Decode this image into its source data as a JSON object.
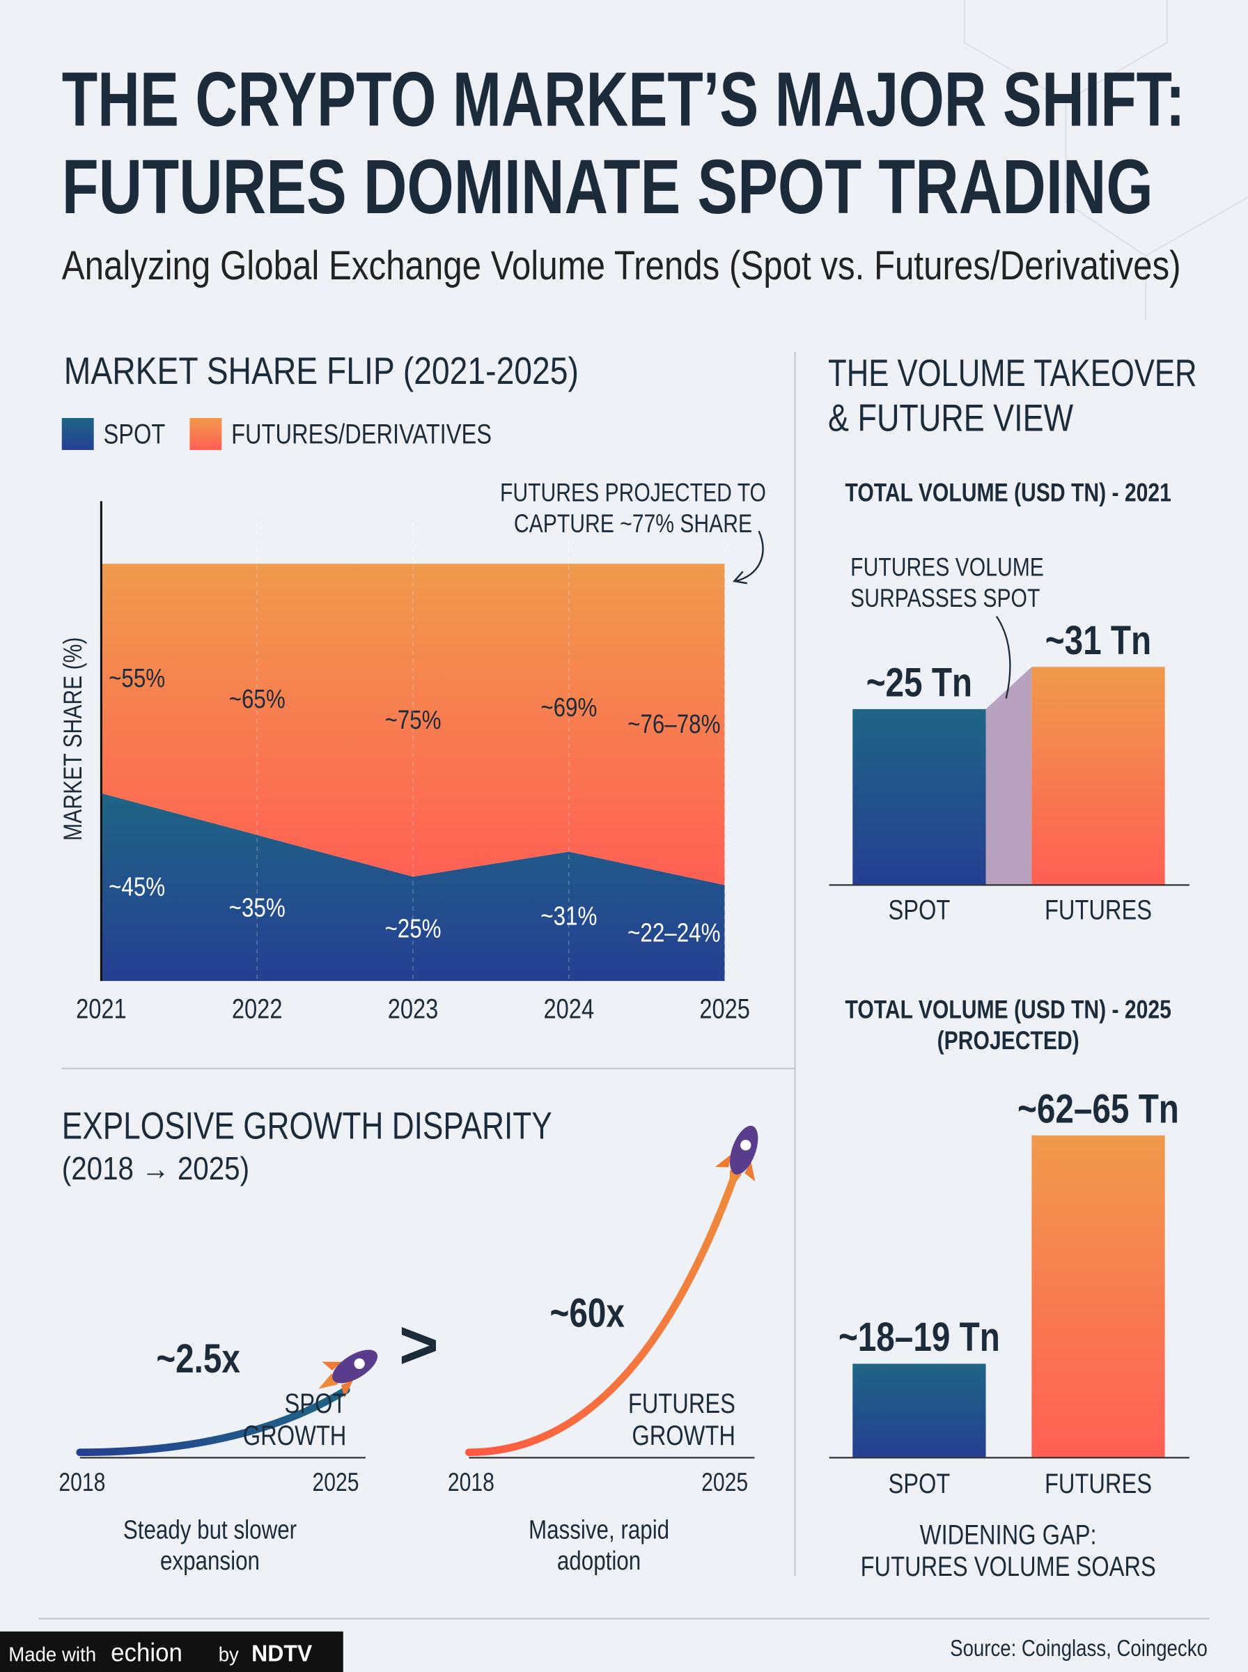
{
  "title": [
    "THE CRYPTO MARKET’S MAJOR SHIFT:",
    "FUTURES DOMINATE SPOT TRADING"
  ],
  "subtitle": "Analyzing Global Exchange Volume Trends (Spot vs. Futures/Derivatives)",
  "right_heading": [
    "THE VOLUME TAKEOVER",
    "& FUTURE VIEW"
  ],
  "chart_data": [
    {
      "type": "area",
      "title": "MARKET SHARE FLIP (2021-2025)",
      "y_label": "MARKET SHARE (%)",
      "annotation": [
        "FUTURES PROJECTED TO",
        "CAPTURE ~77% SHARE"
      ],
      "legend": "top-left",
      "stacked": true,
      "categories": [
        "2021",
        "2022",
        "2023",
        "2024",
        "2025"
      ],
      "ylim": [
        0,
        115
      ],
      "series": [
        {
          "name": "SPOT",
          "color": "#1f6585",
          "values": [
            45,
            35,
            25,
            31,
            23
          ],
          "value_labels": [
            "~45%",
            "~35%",
            "~25%",
            "~31%",
            "~22–24%"
          ]
        },
        {
          "name": "FUTURES/DERIVATIVES",
          "color": "#f09a4c",
          "values": [
            55,
            65,
            75,
            69,
            77
          ],
          "value_labels": [
            "~55%",
            "~65%",
            "~75%",
            "~69%",
            "~76–78%"
          ]
        }
      ]
    },
    {
      "type": "bar",
      "title": [
        "TOTAL VOLUME (USD TN) - 2021"
      ],
      "annotation": [
        "FUTURES VOLUME",
        "SURPASSES SPOT"
      ],
      "categories": [
        "SPOT",
        "FUTURES"
      ],
      "values": [
        25,
        31
      ],
      "value_labels": [
        "~25 Tn",
        "~31 Tn"
      ],
      "colors": [
        "#1f6585",
        "#f09a4c"
      ],
      "ylim": [
        0,
        50
      ]
    },
    {
      "type": "bar",
      "title": [
        "TOTAL VOLUME (USD TN) - 2025",
        "(PROJECTED)"
      ],
      "footnote": [
        "WIDENING GAP:",
        "FUTURES VOLUME SOARS"
      ],
      "categories": [
        "SPOT",
        "FUTURES"
      ],
      "values": [
        18.5,
        63.5
      ],
      "value_labels": [
        "~18–19 Tn",
        "~62–65 Tn"
      ],
      "colors": [
        "#1f6585",
        "#f09a4c"
      ],
      "ylim": [
        0,
        75
      ]
    },
    {
      "type": "growth",
      "title": "EXPLOSIVE GROWTH DISPARITY",
      "subtitle": "(2018 → 2025)",
      "categories": [
        "2018",
        "2025"
      ],
      "log_scale": true,
      "ylim": [
        1,
        100
      ],
      "comparator": ">",
      "series": [
        {
          "name": [
            "SPOT",
            "GROWTH"
          ],
          "color": "#1f6585",
          "value": 2.5,
          "value_label": "~2.5x",
          "caption": [
            "Steady but slower",
            "expansion"
          ]
        },
        {
          "name": [
            "FUTURES",
            "GROWTH"
          ],
          "color": "#ee8a3c",
          "value": 60,
          "value_label": "~60x",
          "caption": [
            "Massive, rapid",
            "adoption"
          ]
        }
      ]
    }
  ],
  "footer": {
    "brand": [
      "Made with",
      "echion",
      "by",
      "NDTV"
    ],
    "source": "Source: Coinglass, Coingecko"
  }
}
